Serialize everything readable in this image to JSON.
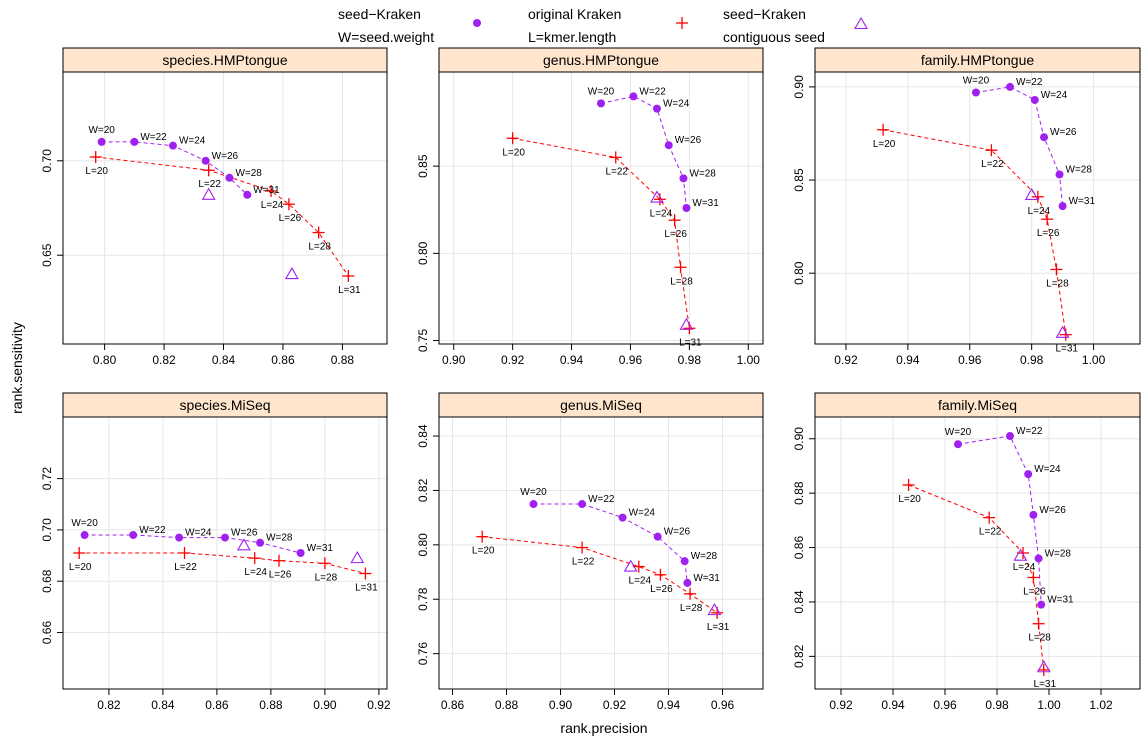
{
  "figure": {
    "xlabel": "rank.precision",
    "ylabel": "rank.sensitivity"
  },
  "legend": [
    {
      "line1": "seed−Kraken",
      "line2": "W=seed.weight",
      "marker": "circle",
      "color": "#a020f0"
    },
    {
      "line1": "original Kraken",
      "line2": "L=kmer.length",
      "marker": "plus",
      "color": "#ff0000"
    },
    {
      "line1": "seed−Kraken",
      "line2": "contiguous seed",
      "marker": "triangle",
      "color": "#a020f0"
    }
  ],
  "colors": {
    "seed": "#a020f0",
    "orig": "#ff0000",
    "strip_bg": "#ffe5cc",
    "grid": "#e6e6e6"
  },
  "chart_data": [
    {
      "type": "scatter",
      "title": "species.HMPtongue",
      "xlim": [
        0.786,
        0.895
      ],
      "ylim": [
        0.603,
        0.747
      ],
      "xticks": [
        0.8,
        0.82,
        0.84,
        0.86,
        0.88
      ],
      "xtick_labels": [
        "0.80",
        "0.82",
        "0.84",
        "0.86",
        "0.88"
      ],
      "yticks": [
        0.65,
        0.7
      ],
      "ytick_labels": [
        "0.65",
        "0.70"
      ],
      "seed": [
        {
          "x": 0.799,
          "y": 0.71,
          "label": "W=20"
        },
        {
          "x": 0.81,
          "y": 0.71,
          "label": "W=22"
        },
        {
          "x": 0.823,
          "y": 0.708,
          "label": "W=24"
        },
        {
          "x": 0.834,
          "y": 0.7,
          "label": "W=26"
        },
        {
          "x": 0.842,
          "y": 0.691,
          "label": "W=28"
        },
        {
          "x": 0.848,
          "y": 0.682,
          "label": "W=31"
        }
      ],
      "original": [
        {
          "x": 0.797,
          "y": 0.702,
          "label": "L=20"
        },
        {
          "x": 0.835,
          "y": 0.695,
          "label": "L=22"
        },
        {
          "x": 0.856,
          "y": 0.684,
          "label": "L=24"
        },
        {
          "x": 0.862,
          "y": 0.677,
          "label": "L=26"
        },
        {
          "x": 0.872,
          "y": 0.662,
          "label": "L=28"
        },
        {
          "x": 0.882,
          "y": 0.639,
          "label": "L=31"
        }
      ],
      "contiguous": [
        {
          "x": 0.835,
          "y": 0.682
        },
        {
          "x": 0.863,
          "y": 0.64
        }
      ]
    },
    {
      "type": "scatter",
      "title": "genus.HMPtongue",
      "xlim": [
        0.895,
        1.005
      ],
      "ylim": [
        0.748,
        0.904
      ],
      "xticks": [
        0.9,
        0.92,
        0.94,
        0.96,
        0.98,
        1.0
      ],
      "xtick_labels": [
        "0.90",
        "0.92",
        "0.94",
        "0.96",
        "0.98",
        "1.00"
      ],
      "yticks": [
        0.75,
        0.8,
        0.85
      ],
      "ytick_labels": [
        "0.75",
        "0.80",
        "0.85"
      ],
      "seed": [
        {
          "x": 0.95,
          "y": 0.886,
          "label": "W=20"
        },
        {
          "x": 0.961,
          "y": 0.89,
          "label": "W=22"
        },
        {
          "x": 0.969,
          "y": 0.883,
          "label": "W=24"
        },
        {
          "x": 0.973,
          "y": 0.862,
          "label": "W=26"
        },
        {
          "x": 0.978,
          "y": 0.843,
          "label": "W=28"
        },
        {
          "x": 0.979,
          "y": 0.826,
          "label": "W=31"
        }
      ],
      "original": [
        {
          "x": 0.92,
          "y": 0.866,
          "label": "L=20"
        },
        {
          "x": 0.955,
          "y": 0.855,
          "label": "L=22"
        },
        {
          "x": 0.97,
          "y": 0.831,
          "label": "L=24"
        },
        {
          "x": 0.975,
          "y": 0.819,
          "label": "L=26"
        },
        {
          "x": 0.977,
          "y": 0.792,
          "label": "L=28"
        },
        {
          "x": 0.98,
          "y": 0.757,
          "label": "L=31"
        }
      ],
      "contiguous": [
        {
          "x": 0.969,
          "y": 0.832
        },
        {
          "x": 0.979,
          "y": 0.759
        }
      ]
    },
    {
      "type": "scatter",
      "title": "family.HMPtongue",
      "xlim": [
        0.91,
        1.015
      ],
      "ylim": [
        0.762,
        0.908
      ],
      "xticks": [
        0.92,
        0.94,
        0.96,
        0.98,
        1.0
      ],
      "xtick_labels": [
        "0.92",
        "0.94",
        "0.96",
        "0.98",
        "1.00"
      ],
      "yticks": [
        0.8,
        0.85,
        0.9
      ],
      "ytick_labels": [
        "0.80",
        "0.85",
        "0.90"
      ],
      "seed": [
        {
          "x": 0.962,
          "y": 0.897,
          "label": "W=20"
        },
        {
          "x": 0.973,
          "y": 0.9,
          "label": "W=22"
        },
        {
          "x": 0.981,
          "y": 0.893,
          "label": "W=24"
        },
        {
          "x": 0.984,
          "y": 0.873,
          "label": "W=26"
        },
        {
          "x": 0.989,
          "y": 0.853,
          "label": "W=28"
        },
        {
          "x": 0.99,
          "y": 0.836,
          "label": "W=31"
        }
      ],
      "original": [
        {
          "x": 0.932,
          "y": 0.877,
          "label": "L=20"
        },
        {
          "x": 0.967,
          "y": 0.866,
          "label": "L=22"
        },
        {
          "x": 0.982,
          "y": 0.841,
          "label": "L=24"
        },
        {
          "x": 0.985,
          "y": 0.829,
          "label": "L=26"
        },
        {
          "x": 0.988,
          "y": 0.802,
          "label": "L=28"
        },
        {
          "x": 0.991,
          "y": 0.767,
          "label": "L=31"
        }
      ],
      "contiguous": [
        {
          "x": 0.98,
          "y": 0.842
        },
        {
          "x": 0.99,
          "y": 0.768
        }
      ]
    },
    {
      "type": "scatter",
      "title": "species.MiSeq",
      "xlim": [
        0.803,
        0.923
      ],
      "ylim": [
        0.638,
        0.744
      ],
      "xticks": [
        0.82,
        0.84,
        0.86,
        0.88,
        0.9,
        0.92
      ],
      "xtick_labels": [
        "0.82",
        "0.84",
        "0.86",
        "0.88",
        "0.90",
        "0.92"
      ],
      "yticks": [
        0.66,
        0.68,
        0.7,
        0.72
      ],
      "ytick_labels": [
        "0.66",
        "0.68",
        "0.70",
        "0.72"
      ],
      "seed": [
        {
          "x": 0.811,
          "y": 0.698,
          "label": "W=20"
        },
        {
          "x": 0.829,
          "y": 0.698,
          "label": "W=22"
        },
        {
          "x": 0.846,
          "y": 0.697,
          "label": "W=24"
        },
        {
          "x": 0.863,
          "y": 0.697,
          "label": "W=26"
        },
        {
          "x": 0.876,
          "y": 0.695,
          "label": "W=28"
        },
        {
          "x": 0.891,
          "y": 0.691,
          "label": "W=31"
        }
      ],
      "original": [
        {
          "x": 0.809,
          "y": 0.691,
          "label": "L=20"
        },
        {
          "x": 0.848,
          "y": 0.691,
          "label": "L=22"
        },
        {
          "x": 0.874,
          "y": 0.689,
          "label": "L=24"
        },
        {
          "x": 0.883,
          "y": 0.688,
          "label": "L=26"
        },
        {
          "x": 0.9,
          "y": 0.687,
          "label": "L=28"
        },
        {
          "x": 0.915,
          "y": 0.683,
          "label": "L=31"
        }
      ],
      "contiguous": [
        {
          "x": 0.87,
          "y": 0.694
        },
        {
          "x": 0.912,
          "y": 0.689
        }
      ]
    },
    {
      "type": "scatter",
      "title": "genus.MiSeq",
      "xlim": [
        0.855,
        0.975
      ],
      "ylim": [
        0.747,
        0.847
      ],
      "xticks": [
        0.86,
        0.88,
        0.9,
        0.92,
        0.94,
        0.96
      ],
      "xtick_labels": [
        "0.86",
        "0.88",
        "0.90",
        "0.92",
        "0.94",
        "0.96"
      ],
      "yticks": [
        0.76,
        0.78,
        0.8,
        0.82,
        0.84
      ],
      "ytick_labels": [
        "0.76",
        "0.78",
        "0.80",
        "0.82",
        "0.84"
      ],
      "seed": [
        {
          "x": 0.89,
          "y": 0.815,
          "label": "W=20"
        },
        {
          "x": 0.908,
          "y": 0.815,
          "label": "W=22"
        },
        {
          "x": 0.923,
          "y": 0.81,
          "label": "W=24"
        },
        {
          "x": 0.936,
          "y": 0.803,
          "label": "W=26"
        },
        {
          "x": 0.946,
          "y": 0.794,
          "label": "W=28"
        },
        {
          "x": 0.947,
          "y": 0.786,
          "label": "W=31"
        }
      ],
      "original": [
        {
          "x": 0.871,
          "y": 0.803,
          "label": "L=20"
        },
        {
          "x": 0.908,
          "y": 0.799,
          "label": "L=22"
        },
        {
          "x": 0.929,
          "y": 0.792,
          "label": "L=24"
        },
        {
          "x": 0.937,
          "y": 0.789,
          "label": "L=26"
        },
        {
          "x": 0.948,
          "y": 0.782,
          "label": "L=28"
        },
        {
          "x": 0.958,
          "y": 0.775,
          "label": "L=31"
        }
      ],
      "contiguous": [
        {
          "x": 0.926,
          "y": 0.792
        },
        {
          "x": 0.957,
          "y": 0.776
        }
      ]
    },
    {
      "type": "scatter",
      "title": "family.MiSeq",
      "xlim": [
        0.91,
        1.035
      ],
      "ylim": [
        0.808,
        0.908
      ],
      "xticks": [
        0.92,
        0.94,
        0.96,
        0.98,
        1.0,
        1.02
      ],
      "xtick_labels": [
        "0.92",
        "0.94",
        "0.96",
        "0.98",
        "1.00",
        "1.02"
      ],
      "yticks": [
        0.82,
        0.84,
        0.86,
        0.88,
        0.9
      ],
      "ytick_labels": [
        "0.82",
        "0.84",
        "0.86",
        "0.88",
        "0.90"
      ],
      "seed": [
        {
          "x": 0.965,
          "y": 0.898,
          "label": "W=20"
        },
        {
          "x": 0.985,
          "y": 0.901,
          "label": "W=22"
        },
        {
          "x": 0.992,
          "y": 0.887,
          "label": "W=24"
        },
        {
          "x": 0.994,
          "y": 0.872,
          "label": "W=26"
        },
        {
          "x": 0.996,
          "y": 0.856,
          "label": "W=28"
        },
        {
          "x": 0.997,
          "y": 0.839,
          "label": "W=31"
        }
      ],
      "original": [
        {
          "x": 0.946,
          "y": 0.883,
          "label": "L=20"
        },
        {
          "x": 0.977,
          "y": 0.871,
          "label": "L=22"
        },
        {
          "x": 0.99,
          "y": 0.858,
          "label": "L=24"
        },
        {
          "x": 0.994,
          "y": 0.849,
          "label": "L=26"
        },
        {
          "x": 0.996,
          "y": 0.832,
          "label": "L=28"
        },
        {
          "x": 0.998,
          "y": 0.815,
          "label": "L=31"
        }
      ],
      "contiguous": [
        {
          "x": 0.989,
          "y": 0.857
        },
        {
          "x": 0.998,
          "y": 0.816
        }
      ]
    }
  ]
}
